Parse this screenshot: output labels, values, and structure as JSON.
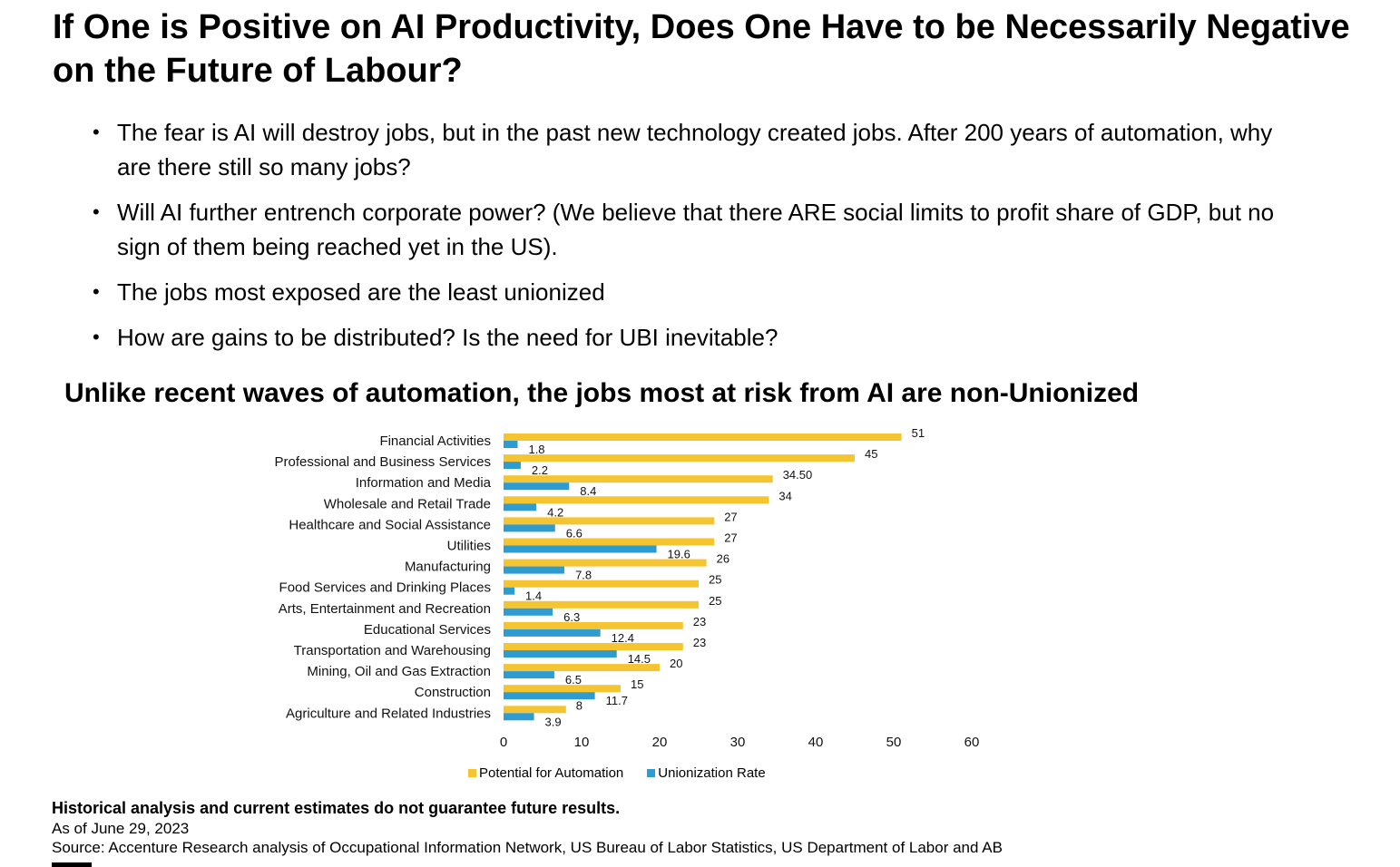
{
  "slide": {
    "title": "If One is Positive on AI Productivity, Does One Have to be Necessarily Negative on the Future of Labour?",
    "bullet_char": "•",
    "bullets": [
      "The fear is AI will destroy jobs, but in the past new technology created jobs. After 200 years of automation, why are there still so many jobs?",
      "Will AI further entrench corporate power? (We believe that there ARE social limits to profit share of GDP, but no sign of them being reached yet in the US).",
      "The jobs most exposed are the least unionized",
      "How are gains to be distributed? Is the need for UBI inevitable?"
    ],
    "chart_title": "Unlike recent waves of automation, the jobs most at risk from AI are non-Unionized",
    "disclaimer": "Historical analysis and current estimates do not guarantee future results.",
    "as_of": "As of June 29, 2023",
    "source": "Source:  Accenture Research analysis of Occupational Information Network, US Bureau of Labor Statistics, US Department of Labor and AB"
  },
  "chart_data": {
    "type": "bar",
    "orientation": "horizontal",
    "title": "Unlike recent waves of automation, the jobs most at risk from AI are non-Unionized",
    "categories": [
      "Financial Activities",
      "Professional and Business Services",
      "Information and Media",
      "Wholesale and Retail Trade",
      "Healthcare and Social Assistance",
      "Utilities",
      "Manufacturing",
      "Food Services and Drinking Places",
      "Arts, Entertainment and Recreation",
      "Educational Services",
      "Transportation and Warehousing",
      "Mining, Oil and Gas Extraction",
      "Construction",
      "Agriculture and Related Industries"
    ],
    "series": [
      {
        "name": "Potential for Automation",
        "color": "#F5C431",
        "values": [
          51,
          45,
          34.5,
          34,
          27,
          27,
          26,
          25,
          25,
          23,
          23,
          20,
          15,
          8
        ],
        "labels": [
          "51",
          "45",
          "34.50",
          "34",
          "27",
          "27",
          "26",
          "25",
          "25",
          "23",
          "23",
          "20",
          "15",
          "8"
        ]
      },
      {
        "name": "Unionization Rate",
        "color": "#2E9BD1",
        "values": [
          1.8,
          2.2,
          8.4,
          4.2,
          6.6,
          19.6,
          7.8,
          1.4,
          6.3,
          12.4,
          14.5,
          6.5,
          11.7,
          3.9
        ],
        "labels": [
          "1.8",
          "2.2",
          "8.4",
          "4.2",
          "6.6",
          "19.6",
          "7.8",
          "1.4",
          "6.3",
          "12.4",
          "14.5",
          "6.5",
          "11.7",
          "3.9"
        ]
      }
    ],
    "xlim": [
      0,
      60
    ],
    "xticks": [
      "0",
      "10",
      "20",
      "30",
      "40",
      "50",
      "60"
    ],
    "legend_position": "bottom",
    "grid": false
  }
}
